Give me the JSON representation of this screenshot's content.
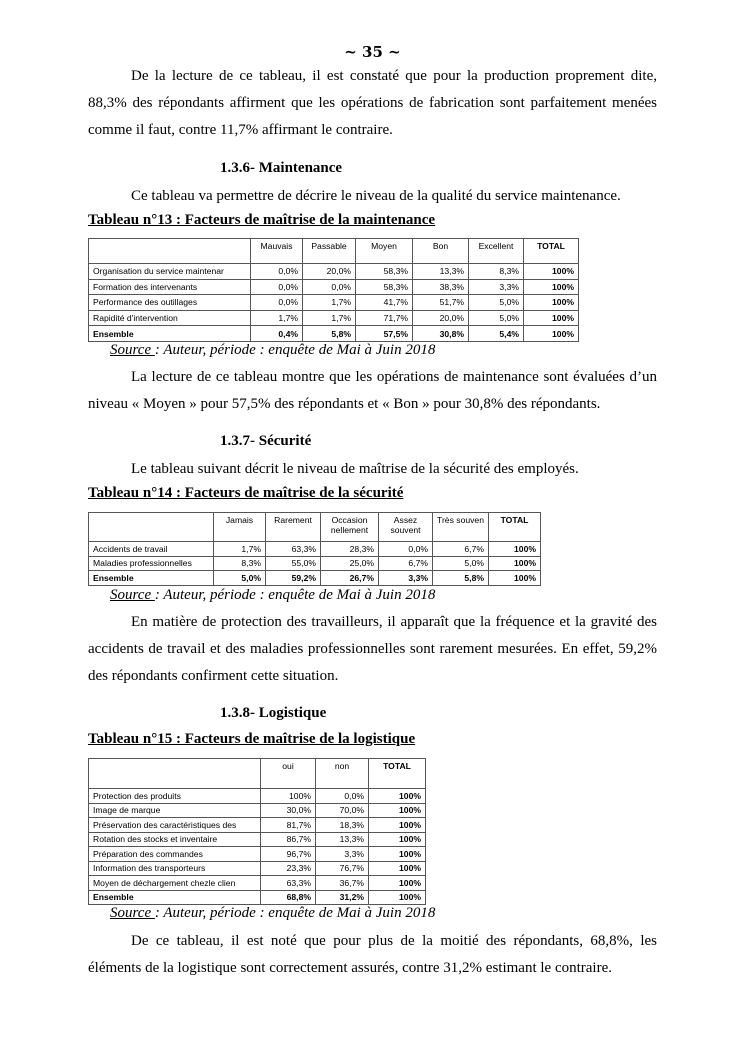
{
  "page_number": "~ 35 ~",
  "para1": "De la lecture de ce tableau, il est constaté que pour la production proprement dite, 88,3% des répondants affirment que les opérations de fabrication sont parfaitement menées comme il faut, contre 11,7% affirmant le contraire.",
  "s136": {
    "heading": "1.3.6-  Maintenance",
    "intro": "Ce tableau va permettre de décrire le niveau de la qualité du service maintenance.",
    "caption": "Tableau n°13 : Facteurs de maîtrise de la maintenance",
    "table": {
      "headers": [
        "",
        "Mauvais",
        "Passable",
        "Moyen",
        "Bon",
        "Excellent",
        "TOTAL"
      ],
      "rows": [
        [
          "Organisation du service maintenar",
          "0,0%",
          "20,0%",
          "58,3%",
          "13,3%",
          "8,3%",
          "100%"
        ],
        [
          "Formation des intervenants",
          "0,0%",
          "0,0%",
          "58,3%",
          "38,3%",
          "3,3%",
          "100%"
        ],
        [
          "Performance des outillages",
          "0,0%",
          "1,7%",
          "41,7%",
          "51,7%",
          "5,0%",
          "100%"
        ],
        [
          "Rapidité d'intervention",
          "1,7%",
          "1,7%",
          "71,7%",
          "20,0%",
          "5,0%",
          "100%"
        ],
        [
          "Ensemble",
          "0,4%",
          "5,8%",
          "57,5%",
          "30,8%",
          "5,4%",
          "100%"
        ]
      ]
    },
    "source_label": "Source ",
    "source_text": ": Auteur, période : enquête de Mai à Juin 2018",
    "comment": "La lecture de ce tableau montre que les opérations de maintenance sont évaluées d’un niveau « Moyen » pour 57,5% des répondants et « Bon » pour 30,8% des répondants."
  },
  "s137": {
    "heading": "1.3.7-  Sécurité",
    "intro": "Le tableau suivant décrit le niveau de maîtrise de la sécurité des employés.",
    "caption": "Tableau n°14 : Facteurs de maîtrise de la sécurité",
    "table": {
      "headers": [
        "",
        "Jamais",
        "Rarement",
        "Occasion nellement",
        "Assez souvent",
        "Très souven",
        "TOTAL"
      ],
      "rows": [
        [
          "Accidents de travail",
          "1,7%",
          "63,3%",
          "28,3%",
          "0,0%",
          "6,7%",
          "100%"
        ],
        [
          "Maladies professionnelles",
          "8,3%",
          "55,0%",
          "25,0%",
          "6,7%",
          "5,0%",
          "100%"
        ],
        [
          "Ensemble",
          "5,0%",
          "59,2%",
          "26,7%",
          "3,3%",
          "5,8%",
          "100%"
        ]
      ]
    },
    "source_label": "Source ",
    "source_text": ": Auteur, période : enquête de Mai à Juin 2018",
    "comment": "En matière de protection des travailleurs, il apparaît que la fréquence et la gravité des accidents de travail et des maladies professionnelles sont rarement mesurées. En effet, 59,2% des répondants confirment cette situation."
  },
  "s138": {
    "heading": "1.3.8-  Logistique",
    "caption": "Tableau n°15 : Facteurs de maîtrise de la logistique",
    "table": {
      "headers": [
        "",
        "oui",
        "non",
        "TOTAL"
      ],
      "rows": [
        [
          "Protection des produits",
          "100%",
          "0,0%",
          "100%"
        ],
        [
          "Image de marque",
          "30,0%",
          "70,0%",
          "100%"
        ],
        [
          "Préservation des caractéristiques des",
          "81,7%",
          "18,3%",
          "100%"
        ],
        [
          "Rotation des stocks et inventaire",
          "86,7%",
          "13,3%",
          "100%"
        ],
        [
          "Préparation des commandes",
          "96,7%",
          "3,3%",
          "100%"
        ],
        [
          "Information des transporteurs",
          "23,3%",
          "76,7%",
          "100%"
        ],
        [
          "Moyen de déchargement chezle clien",
          "63,3%",
          "36,7%",
          "100%"
        ],
        [
          "Ensemble",
          "68,8%",
          "31,2%",
          "100%"
        ]
      ]
    },
    "source_label": "Source ",
    "source_text": ": Auteur, période : enquête de Mai à Juin 2018",
    "comment": "De ce tableau, il est noté que pour plus de la moitié des répondants, 68,8%, les éléments de la logistique sont correctement assurés, contre 31,2% estimant le contraire."
  }
}
